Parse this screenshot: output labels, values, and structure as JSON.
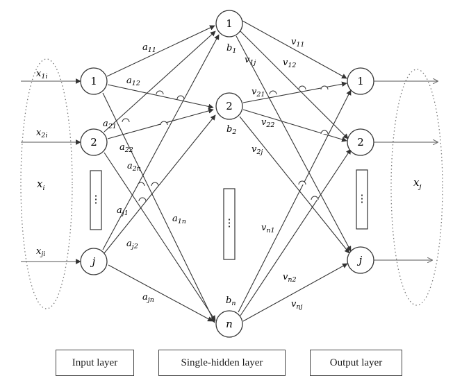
{
  "input_nodes": [
    {
      "label": "1"
    },
    {
      "label": "2"
    },
    {
      "label": "j"
    }
  ],
  "hidden_nodes": [
    {
      "label": "1"
    },
    {
      "label": "2"
    },
    {
      "label": "n"
    }
  ],
  "output_nodes": [
    {
      "label": "1"
    },
    {
      "label": "2"
    },
    {
      "label": "j"
    }
  ],
  "inputs": [
    {
      "base": "x",
      "sub": "1",
      "sup": "i"
    },
    {
      "base": "x",
      "sub": "2",
      "sup": "i"
    },
    {
      "base": "x",
      "sub": "j",
      "sup": "i"
    }
  ],
  "input_vector": {
    "base": "x",
    "sub": "i"
  },
  "output_vector": {
    "base": "x",
    "sub": "j"
  },
  "biases": [
    {
      "base": "b",
      "sub": "1"
    },
    {
      "base": "b",
      "sub": "2"
    },
    {
      "base": "b",
      "sub": "n"
    }
  ],
  "input_weights": [
    {
      "base": "a",
      "sub": "11"
    },
    {
      "base": "a",
      "sub": "12"
    },
    {
      "base": "a",
      "sub": "21"
    },
    {
      "base": "a",
      "sub": "22"
    },
    {
      "base": "a",
      "sub": "2n"
    },
    {
      "base": "a",
      "sub": "j1"
    },
    {
      "base": "a",
      "sub": "1n"
    },
    {
      "base": "a",
      "sub": "j2"
    },
    {
      "base": "a",
      "sub": "jn"
    }
  ],
  "output_weights": [
    {
      "base": "v",
      "sub": "11"
    },
    {
      "base": "v",
      "sub": "1j"
    },
    {
      "base": "v",
      "sub": "12"
    },
    {
      "base": "v",
      "sub": "21"
    },
    {
      "base": "v",
      "sub": "22"
    },
    {
      "base": "v",
      "sub": "2j"
    },
    {
      "base": "v",
      "sub": "n1"
    },
    {
      "base": "v",
      "sub": "n2"
    },
    {
      "base": "v",
      "sub": "nj"
    }
  ],
  "legend": {
    "input": "Input layer",
    "hidden": "Single-hidden layer",
    "output": "Output layer"
  }
}
